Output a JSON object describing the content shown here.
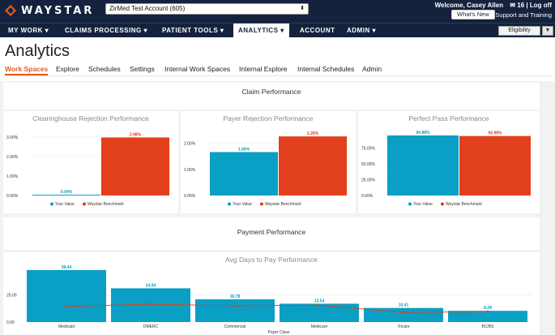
{
  "colors": {
    "navy": "#14223d",
    "blue": "#0a9fc4",
    "red": "#e23f1c",
    "orange_accent": "#e85c1d"
  },
  "header": {
    "logo_text": "WAYSTAR",
    "account_select": "ZirMed Test Account (605)",
    "welcome": "Welcome, Casey Allen",
    "mail_count": "16",
    "logoff": "Log off",
    "whats_new": "What's New",
    "support": "Support and Training"
  },
  "nav": {
    "items": [
      "MY WORK",
      "CLAIMS PROCESSING",
      "PATIENT TOOLS",
      "ANALYTICS",
      "ACCOUNT",
      "ADMIN"
    ],
    "eligibility": "Eligibility"
  },
  "page": {
    "title": "Analytics"
  },
  "tabs": [
    "Work Spaces",
    "Explore",
    "Schedules",
    "Settings",
    "Internal Work Spaces",
    "Internal Explore",
    "Internal Schedules",
    "Admin"
  ],
  "claim_section": {
    "title": "Claim Performance"
  },
  "payment_section": {
    "title": "Payment Performance"
  },
  "legend": {
    "your_value": "Your Value",
    "benchmark": "Waystar Benchmark"
  },
  "chart_data": [
    {
      "type": "bar",
      "title": "Clearinghouse Rejection Performance",
      "categories": [
        "Your Value",
        "Waystar Benchmark"
      ],
      "values": [
        0.04,
        2.98
      ],
      "labels": [
        "0.04%",
        "2.98%"
      ],
      "yticks": [
        "0.00%",
        "1.00%",
        "2.00%",
        "3.00%"
      ],
      "ylim": [
        0,
        3.25
      ]
    },
    {
      "type": "bar",
      "title": "Payer Rejection Performance",
      "categories": [
        "Your Value",
        "Waystar Benchmark"
      ],
      "values": [
        1.66,
        2.26
      ],
      "labels": [
        "1.66%",
        "2.26%"
      ],
      "yticks": [
        "0.00%",
        "1.00%",
        "2.00%"
      ],
      "ylim": [
        0,
        2.42
      ]
    },
    {
      "type": "bar",
      "title": "Perfect Pass Performance",
      "categories": [
        "Your Value",
        "Waystar Benchmark"
      ],
      "values": [
        94.88,
        93.98
      ],
      "labels": [
        "94.88%",
        "93.98%"
      ],
      "yticks": [
        "0.00%",
        "25.00%",
        "50.00%",
        "75.00%"
      ],
      "ylim": [
        0,
        100
      ]
    },
    {
      "type": "bar",
      "title": "Avg Days to Pay Performance",
      "xlabel": "Payer Class",
      "categories": [
        "Medicaid",
        "DMERC",
        "Commercial",
        "Medicare",
        "Tricare",
        "BC/BS"
      ],
      "values": [
        38.44,
        24.94,
        16.78,
        13.54,
        10.41,
        8.28
      ],
      "labels": [
        "38.44",
        "24.94",
        "16.78",
        "13.54",
        "10.41",
        "8.28"
      ],
      "benchmark_values": [
        11.5,
        13.2,
        12.0,
        12.5,
        7.0,
        7.8
      ],
      "yticks": [
        "0.00",
        "20.00"
      ],
      "ylim": [
        0,
        42
      ]
    }
  ]
}
